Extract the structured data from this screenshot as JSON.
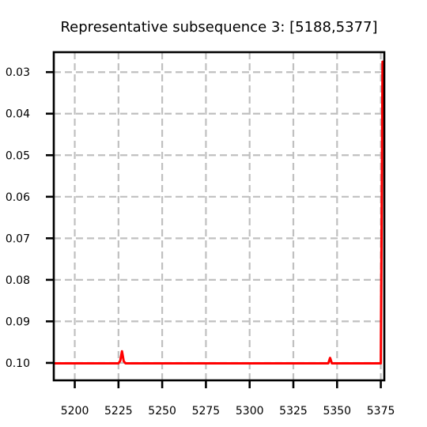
{
  "chart_data": {
    "type": "line",
    "title": "Representative subsequence 3: [5188,5377]",
    "xlabel": "",
    "ylabel": "",
    "xlim": [
      5188,
      5377
    ],
    "ylim": [
      -0.1042,
      -0.0252
    ],
    "y_inverted": true,
    "grid": true,
    "legend": "none",
    "x_ticks": [
      5200,
      5225,
      5250,
      5275,
      5300,
      5325,
      5350,
      5375
    ],
    "x_tick_labels": [
      "5200",
      "5225",
      "5250",
      "5275",
      "5300",
      "5325",
      "5350",
      "5375"
    ],
    "y_ticks": [
      -0.03,
      -0.04,
      -0.05,
      -0.06,
      -0.07,
      -0.08,
      -0.09,
      -0.1
    ],
    "y_tick_labels": [
      "0.03",
      "0.04",
      "0.05",
      "0.06",
      "0.07",
      "0.08",
      "0.09",
      "0.10"
    ],
    "series": [
      {
        "color": "#ff0000",
        "x": [
          5188,
          5225,
          5226,
          5227,
          5228,
          5229,
          5345,
          5346,
          5347,
          5348,
          5375,
          5376,
          5377
        ],
        "y": [
          -0.1001,
          -0.1001,
          -0.0995,
          -0.0972,
          -0.0996,
          -0.1001,
          -0.1001,
          -0.0988,
          -0.1001,
          -0.1001,
          -0.1001,
          -0.0275,
          -0.0275
        ]
      }
    ]
  }
}
